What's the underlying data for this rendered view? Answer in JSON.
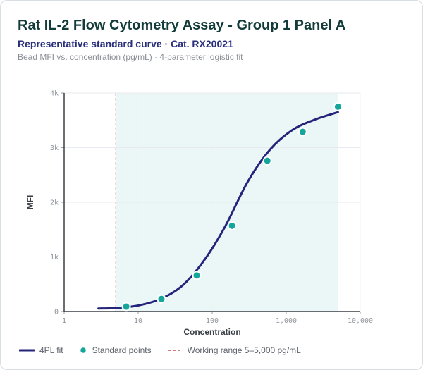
{
  "header": {
    "title": "Rat IL-2 Flow Cytometry Assay - Group 1 Panel A",
    "subtitle": "Representative standard curve · Cat. RX20021",
    "caption": "Bead MFI vs. concentration (pg/mL) · 4-parameter logistic fit"
  },
  "legend": {
    "fit_label": "4PL fit",
    "points_label": "Standard points",
    "range_label": "Working range 5–5,000 pg/mL"
  },
  "colors": {
    "fit": "#23247a",
    "points": "#14a59b",
    "range_line": "#c0505a",
    "range_fill": "#eaf7f6"
  },
  "chart_data": {
    "type": "scatter",
    "title": "Rat IL-2 Flow Cytometry Assay - Group 1 Panel A",
    "xlabel": "Concentration",
    "ylabel": "MFI",
    "x_scale": "log",
    "xlim": [
      1,
      10000
    ],
    "ylim": [
      0,
      4000
    ],
    "x_ticks": [
      1,
      10,
      100,
      1000,
      10000
    ],
    "x_tick_labels": [
      "1",
      "10",
      "100",
      "1,000",
      "10,000"
    ],
    "y_ticks": [
      0,
      1000,
      2000,
      3000,
      4000
    ],
    "y_tick_labels": [
      "0",
      "1k",
      "2k",
      "3k",
      "4k"
    ],
    "grid": true,
    "legend_position": "bottom-left",
    "working_range": [
      5,
      5000
    ],
    "series": [
      {
        "name": "Standard points",
        "type": "scatter",
        "x": [
          6.9,
          20.6,
          61.7,
          185,
          556,
          1667,
          5000
        ],
        "y": [
          90,
          230,
          660,
          1570,
          2760,
          3290,
          3750
        ]
      },
      {
        "name": "4PL fit",
        "type": "line",
        "x": [
          2.9,
          5,
          10,
          20,
          40,
          80,
          150,
          300,
          600,
          1200,
          2400,
          5000
        ],
        "y": [
          55,
          65,
          110,
          230,
          480,
          960,
          1560,
          2370,
          2960,
          3320,
          3510,
          3650
        ]
      }
    ]
  }
}
